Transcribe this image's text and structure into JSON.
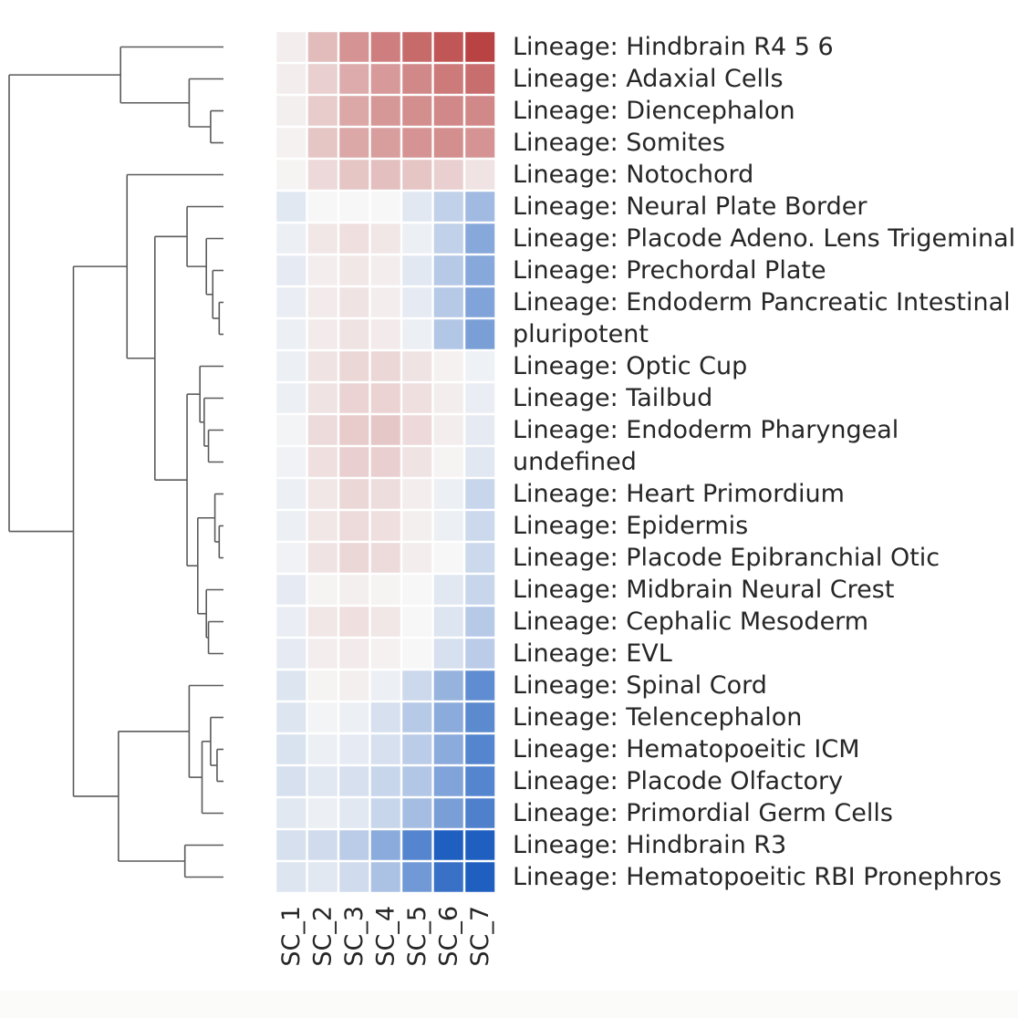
{
  "chart_data": {
    "type": "heatmap",
    "title": "",
    "xlabel": "",
    "ylabel": "",
    "columns": [
      "SC_1",
      "SC_2",
      "SC_3",
      "SC_4",
      "SC_5",
      "SC_6",
      "SC_7"
    ],
    "rows": [
      "Lineage: Hindbrain R4 5 6",
      "Lineage: Adaxial Cells",
      "Lineage: Diencephalon",
      "Lineage: Somites",
      "Lineage: Notochord",
      "Lineage: Neural Plate Border",
      "Lineage: Placode Adeno. Lens Trigeminal",
      "Lineage: Prechordal Plate",
      "Lineage: Endoderm Pancreatic Intestinal",
      "pluripotent",
      "Lineage: Optic Cup",
      "Lineage: Tailbud",
      "Lineage: Endoderm Pharyngeal",
      "undefined",
      "Lineage: Heart Primordium",
      "Lineage: Epidermis",
      "Lineage: Placode Epibranchial Otic",
      "Lineage: Midbrain Neural Crest",
      "Lineage: Cephalic Mesoderm",
      "Lineage: EVL",
      "Lineage: Spinal Cord",
      "Lineage: Telencephalon",
      "Lineage: Hematopoeitic ICM",
      "Lineage: Placode Olfactory",
      "Lineage: Primordial Germ Cells",
      "Lineage: Hindbrain R3",
      "Lineage: Hematopoeitic RBI Pronephros"
    ],
    "values": [
      [
        0.05,
        0.3,
        0.5,
        0.6,
        0.7,
        0.8,
        0.9
      ],
      [
        0.05,
        0.2,
        0.38,
        0.47,
        0.55,
        0.62,
        0.68
      ],
      [
        0.04,
        0.22,
        0.4,
        0.48,
        0.52,
        0.55,
        0.55
      ],
      [
        0.03,
        0.25,
        0.4,
        0.45,
        0.5,
        0.52,
        0.5
      ],
      [
        0.02,
        0.15,
        0.25,
        0.28,
        0.25,
        0.2,
        0.1
      ],
      [
        -0.1,
        0.0,
        0.0,
        0.0,
        -0.1,
        -0.25,
        -0.4
      ],
      [
        -0.05,
        0.08,
        0.12,
        0.08,
        -0.05,
        -0.25,
        -0.52
      ],
      [
        -0.08,
        0.05,
        0.08,
        0.05,
        -0.1,
        -0.3,
        -0.52
      ],
      [
        -0.06,
        0.06,
        0.1,
        0.05,
        -0.08,
        -0.3,
        -0.55
      ],
      [
        -0.05,
        0.06,
        0.1,
        0.06,
        -0.05,
        -0.32,
        -0.58
      ],
      [
        -0.05,
        0.1,
        0.16,
        0.16,
        0.1,
        0.03,
        -0.04
      ],
      [
        -0.05,
        0.1,
        0.18,
        0.18,
        0.12,
        0.05,
        -0.06
      ],
      [
        -0.02,
        0.14,
        0.22,
        0.24,
        0.15,
        0.05,
        -0.08
      ],
      [
        -0.03,
        0.12,
        0.2,
        0.2,
        0.1,
        0.02,
        -0.1
      ],
      [
        -0.05,
        0.08,
        0.16,
        0.13,
        0.05,
        -0.05,
        -0.22
      ],
      [
        -0.05,
        0.08,
        0.14,
        0.12,
        0.04,
        -0.05,
        -0.2
      ],
      [
        -0.03,
        0.1,
        0.16,
        0.14,
        0.05,
        0.0,
        -0.2
      ],
      [
        -0.08,
        0.02,
        0.04,
        0.02,
        0.0,
        -0.1,
        -0.22
      ],
      [
        -0.06,
        0.08,
        0.12,
        0.08,
        0.0,
        -0.12,
        -0.3
      ],
      [
        -0.08,
        0.05,
        0.06,
        0.03,
        0.0,
        -0.15,
        -0.28
      ],
      [
        -0.12,
        0.02,
        0.04,
        -0.05,
        -0.2,
        -0.45,
        -0.7
      ],
      [
        -0.12,
        -0.02,
        -0.05,
        -0.15,
        -0.3,
        -0.5,
        -0.72
      ],
      [
        -0.14,
        -0.05,
        -0.08,
        -0.15,
        -0.28,
        -0.5,
        -0.75
      ],
      [
        -0.15,
        -0.1,
        -0.15,
        -0.22,
        -0.32,
        -0.55,
        -0.75
      ],
      [
        -0.1,
        -0.05,
        -0.1,
        -0.22,
        -0.38,
        -0.58,
        -0.78
      ],
      [
        -0.15,
        -0.18,
        -0.28,
        -0.5,
        -0.75,
        -1.0,
        -1.0
      ],
      [
        -0.12,
        -0.1,
        -0.18,
        -0.35,
        -0.62,
        -0.88,
        -1.0
      ]
    ],
    "vmin": -1,
    "vmax": 1,
    "colormap": {
      "negative": "#1f5fc0",
      "center": "#f7f7f7",
      "positive": "#b22e2e"
    },
    "grid_color": "#ffffff",
    "dendrogram_color": "#5a5a5a",
    "dendrogram": {
      "leaves": 27,
      "merges": [
        [
          2,
          3,
          0.06
        ],
        [
          1,
          27,
          0.16
        ],
        [
          0,
          28,
          0.48
        ],
        [
          8,
          9,
          0.02
        ],
        [
          7,
          30,
          0.05
        ],
        [
          6,
          31,
          0.08
        ],
        [
          5,
          32,
          0.17
        ],
        [
          12,
          13,
          0.07
        ],
        [
          11,
          34,
          0.09
        ],
        [
          10,
          35,
          0.11
        ],
        [
          15,
          16,
          0.02
        ],
        [
          14,
          37,
          0.04
        ],
        [
          18,
          19,
          0.07
        ],
        [
          17,
          39,
          0.08
        ],
        [
          38,
          40,
          0.12
        ],
        [
          36,
          41,
          0.17
        ],
        [
          33,
          42,
          0.32
        ],
        [
          4,
          43,
          0.45
        ],
        [
          22,
          23,
          0.03
        ],
        [
          21,
          45,
          0.06
        ],
        [
          24,
          46,
          0.1
        ],
        [
          20,
          47,
          0.16
        ],
        [
          25,
          26,
          0.18
        ],
        [
          48,
          49,
          0.49
        ],
        [
          44,
          50,
          0.7
        ],
        [
          29,
          51,
          1.0
        ]
      ]
    }
  }
}
